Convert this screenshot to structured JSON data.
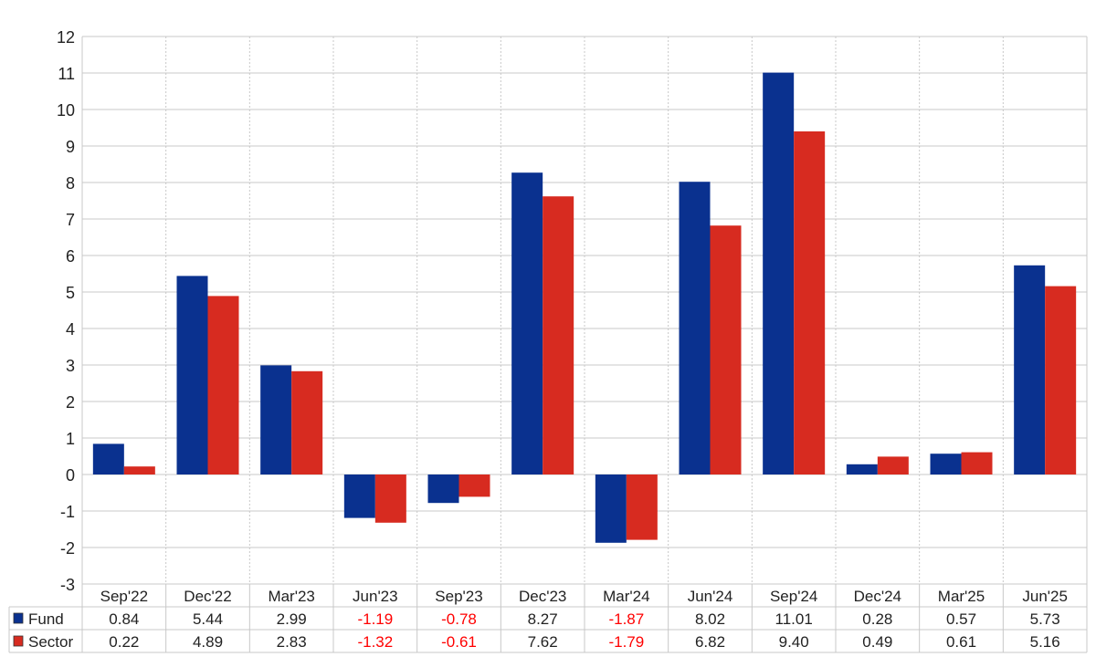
{
  "chart_data": {
    "type": "bar",
    "categories": [
      "Sep'22",
      "Dec'22",
      "Mar'23",
      "Jun'23",
      "Sep'23",
      "Dec'23",
      "Mar'24",
      "Jun'24",
      "Sep'24",
      "Dec'24",
      "Mar'25",
      "Jun'25"
    ],
    "series": [
      {
        "name": "Fund",
        "color": "#0a318f",
        "values": [
          0.84,
          5.44,
          2.99,
          -1.19,
          -0.78,
          8.27,
          -1.87,
          8.02,
          11.01,
          0.28,
          0.57,
          5.73
        ],
        "labels": [
          "0.84",
          "5.44",
          "2.99",
          "-1.19",
          "-0.78",
          "8.27",
          "-1.87",
          "8.02",
          "11.01",
          "0.28",
          "0.57",
          "5.73"
        ]
      },
      {
        "name": "Sector",
        "color": "#d72b20",
        "values": [
          0.22,
          4.89,
          2.83,
          -1.32,
          -0.61,
          7.62,
          -1.79,
          6.82,
          9.4,
          0.49,
          0.61,
          5.16
        ],
        "labels": [
          "0.22",
          "4.89",
          "2.83",
          "-1.32",
          "-0.61",
          "7.62",
          "-1.79",
          "6.82",
          "9.40",
          "0.49",
          "0.61",
          "5.16"
        ]
      }
    ],
    "ylim": [
      -3,
      12
    ],
    "yticks": [
      "12",
      "11",
      "10",
      "9",
      "8",
      "7",
      "6",
      "5",
      "4",
      "3",
      "2",
      "1",
      "0",
      "-1",
      "-2",
      "-3"
    ],
    "grid": true,
    "legend": "table-left",
    "negative_color": "#ff0000"
  }
}
